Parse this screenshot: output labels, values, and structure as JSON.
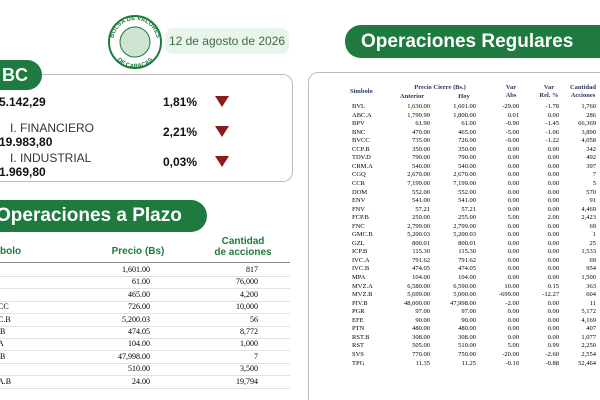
{
  "header": {
    "logo_top": "BOLSA DE VALORES",
    "logo_bottom": "DE CARACAS",
    "date": "12 de agosto de 2026"
  },
  "indices": {
    "title": "BC",
    "items": [
      {
        "value": "5.142,29",
        "change": "1,81%"
      },
      {
        "name": "I. FINANCIERO",
        "value": "19.983,80",
        "change": "2,21%"
      },
      {
        "name": "I. INDUSTRIAL",
        "value": "1.969,80",
        "change": "0,03%"
      }
    ]
  },
  "plazo": {
    "title": "Operaciones a Plazo",
    "headers": {
      "symbol": "bolo",
      "price": "Precio (Bs)",
      "qty": [
        "Cantidad",
        "de acciones"
      ]
    },
    "rows": [
      {
        "symbol": ",",
        "price": "1,601.00",
        "qty": "817"
      },
      {
        "price": "61.00",
        "qty": "76,000"
      },
      {
        "price": "465.00",
        "qty": "4,200"
      },
      {
        "symbol": "CC",
        "price": "726.00",
        "qty": "10,000"
      },
      {
        "symbol": "C.B",
        "price": "5,200.03",
        "qty": "56"
      },
      {
        "symbol": ".B",
        "price": "474.05",
        "qty": "8,772"
      },
      {
        "symbol": "A",
        "price": "104.00",
        "qty": "1,000"
      },
      {
        "symbol": ".B",
        "price": "47,998.00",
        "qty": "7"
      },
      {
        "price": "510.00",
        "qty": "3,500"
      },
      {
        "symbol": "A.B",
        "price": "24.00",
        "qty": "19,794"
      }
    ]
  },
  "regulares": {
    "title": "Operaciones Regulares",
    "headers": {
      "symbol": "Símbolo",
      "price": "Precio Cierre (Bs.)",
      "prev": "Anterior",
      "today": "Hoy",
      "abs": [
        "Var",
        "Abs"
      ],
      "rel": [
        "Var",
        "Rel. %"
      ],
      "qty": [
        "Cantidad",
        "Acciones"
      ]
    },
    "rows": [
      [
        "BVL",
        "1,630.00",
        "1,601.00",
        "-29.00",
        "-1.78",
        "1,760"
      ],
      [
        "ABC.A",
        "1,799.99",
        "1,800.00",
        "0.01",
        "0.00",
        "286"
      ],
      [
        "BPV",
        "61.90",
        "61.00",
        "-0.90",
        "-1.45",
        "66,369"
      ],
      [
        "BNC",
        "470.00",
        "465.00",
        "-5.00",
        "-1.06",
        "3,890"
      ],
      [
        "BVCC",
        "735.00",
        "726.00",
        "-9.00",
        "-1.22",
        "4,058"
      ],
      [
        "CCP.B",
        "350.00",
        "350.00",
        "0.00",
        "0.00",
        "342"
      ],
      [
        "TDV.D",
        "790.00",
        "790.00",
        "0.00",
        "0.00",
        "492"
      ],
      [
        "CRM.A",
        "540.00",
        "540.00",
        "0.00",
        "0.00",
        "397"
      ],
      [
        "CGQ",
        "2,670.00",
        "2,670.00",
        "0.00",
        "0.00",
        "7"
      ],
      [
        "CCR",
        "7,199.00",
        "7,199.00",
        "0.00",
        "0.00",
        "5"
      ],
      [
        "DOM",
        "552.00",
        "552.00",
        "0.00",
        "0.00",
        "570"
      ],
      [
        "ENV",
        "541.00",
        "541.00",
        "0.00",
        "0.00",
        "91"
      ],
      [
        "FNV",
        "57.21",
        "57.21",
        "0.00",
        "0.00",
        "4,469"
      ],
      [
        "FCP.B",
        "250.00",
        "255.00",
        "5.00",
        "2.00",
        "2,423"
      ],
      [
        "FNC",
        "2,799.00",
        "2,799.00",
        "0.00",
        "0.00",
        "69"
      ],
      [
        "GMC.B",
        "5,200.03",
        "5,200.03",
        "0.00",
        "0.00",
        "1"
      ],
      [
        "GZL",
        "800.01",
        "800.01",
        "0.00",
        "0.00",
        "25"
      ],
      [
        "ICP.B",
        "115.30",
        "115.30",
        "0.00",
        "0.00",
        "1,533"
      ],
      [
        "IVC.A",
        "791.62",
        "791.62",
        "0.00",
        "0.00",
        "69"
      ],
      [
        "IVC.B",
        "474.05",
        "474.05",
        "0.00",
        "0.00",
        "954"
      ],
      [
        "MPA",
        "104.00",
        "104.00",
        "0.00",
        "0.00",
        "1,500"
      ],
      [
        "MVZ.A",
        "6,580.00",
        "6,590.00",
        "10.00",
        "0.15",
        "363"
      ],
      [
        "MVZ.B",
        "5,699.00",
        "5,000.00",
        "-699.00",
        "-12.27",
        "604"
      ],
      [
        "PIV.B",
        "48,000.00",
        "47,998.00",
        "-2.00",
        "0.00",
        "11"
      ],
      [
        "PGR",
        "97.00",
        "97.00",
        "0.00",
        "0.00",
        "5,172"
      ],
      [
        "EFE",
        "90.00",
        "90.00",
        "0.00",
        "0.00",
        "4,169"
      ],
      [
        "PTN",
        "480.00",
        "480.00",
        "0.00",
        "0.00",
        "407"
      ],
      [
        "RST.B",
        "308.00",
        "308.00",
        "0.00",
        "0.00",
        "1,077"
      ],
      [
        "RST",
        "505.00",
        "510.00",
        "5.00",
        "0.99",
        "2,250"
      ],
      [
        "SVS",
        "770.00",
        "750.00",
        "-20.00",
        "-2.60",
        "2,554"
      ],
      [
        "TPG",
        "11.35",
        "11.25",
        "-0.10",
        "-0.88",
        "52,464"
      ]
    ]
  }
}
